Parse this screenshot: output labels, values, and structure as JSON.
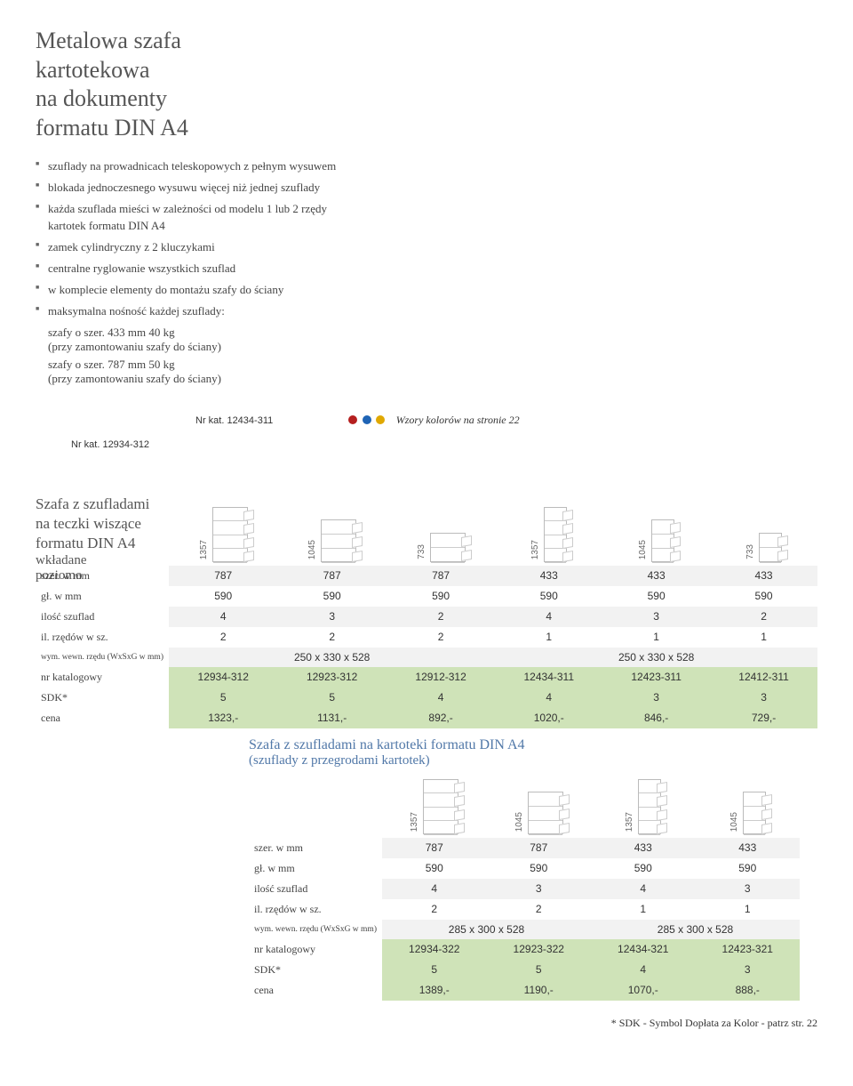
{
  "title_lines": [
    "Metalowa szafa",
    "kartotekowa",
    "na dokumenty",
    "formatu DIN A4"
  ],
  "bullets": [
    "szuflady na prowadnicach teleskopowych z pełnym wysuwem",
    "blokada jednoczesnego wysuwu więcej niż jednej szuflady",
    "każda szuflada mieści w zależności od modelu 1 lub 2 rzędy kartotek formatu DIN A4",
    "zamek cylindryczny z 2 kluczykami",
    "centralne ryglowanie wszystkich szuflad",
    "w komplecie elementy do montażu szafy do ściany",
    "maksymalna nośność każdej szuflady:"
  ],
  "load_lines": [
    "szafy o szer. 433 mm 40 kg",
    "(przy zamontowaniu szafy do ściany)",
    "szafy o szer. 787 mm 50 kg",
    "(przy zamontowaniu szafy do ściany)"
  ],
  "nr_kat_top": "Nr kat. 12434-311",
  "nr_kat_left": "Nr kat. 12934-312",
  "dot_colors": [
    "#b51f1f",
    "#1f64b5",
    "#e0a800"
  ],
  "color_note": "Wzory kolorów na stronie 22",
  "section1_title": [
    "Szafa z szufladami",
    "na teczki wiszące",
    "formatu DIN A4"
  ],
  "section1_sub": [
    "wkładane",
    "poziomo"
  ],
  "table1": {
    "heights": [
      "1357",
      "1045",
      "733",
      "1357",
      "1045",
      "733"
    ],
    "drawers": [
      4,
      3,
      2,
      4,
      3,
      2
    ],
    "wide": [
      true,
      true,
      true,
      false,
      false,
      false
    ],
    "rows": [
      {
        "label": "szer. w mm",
        "vals": [
          "787",
          "787",
          "787",
          "433",
          "433",
          "433"
        ],
        "zebra": true
      },
      {
        "label": "gł. w mm",
        "vals": [
          "590",
          "590",
          "590",
          "590",
          "590",
          "590"
        ],
        "zebra": false
      },
      {
        "label": "ilość szuflad",
        "vals": [
          "4",
          "3",
          "2",
          "4",
          "3",
          "2"
        ],
        "zebra": true
      },
      {
        "label": "il. rzędów w sz.",
        "vals": [
          "2",
          "2",
          "2",
          "1",
          "1",
          "1"
        ],
        "zebra": false
      }
    ],
    "wym_label": "wym. wewn. rzędu (WxSxG w mm)",
    "wym_vals": [
      "250 x 330 x 528",
      "250 x 330 x 528"
    ],
    "hl": [
      {
        "label": "nr katalogowy",
        "vals": [
          "12934-312",
          "12923-312",
          "12912-312",
          "12434-311",
          "12423-311",
          "12412-311"
        ]
      },
      {
        "label": "SDK*",
        "vals": [
          "5",
          "5",
          "4",
          "4",
          "3",
          "3"
        ]
      },
      {
        "label": "cena",
        "vals": [
          "1323,-",
          "1131,-",
          "892,-",
          "1020,-",
          "846,-",
          "729,-"
        ]
      }
    ]
  },
  "section2_title": "Szafa z szufladami na kartoteki formatu DIN A4",
  "section2_sub": "(szuflady z przegrodami kartotek)",
  "table2": {
    "heights": [
      "1357",
      "1045",
      "1357",
      "1045"
    ],
    "drawers": [
      4,
      3,
      4,
      3
    ],
    "wide": [
      true,
      true,
      false,
      false
    ],
    "rows": [
      {
        "label": "szer. w mm",
        "vals": [
          "787",
          "787",
          "433",
          "433"
        ],
        "zebra": true
      },
      {
        "label": "gł. w mm",
        "vals": [
          "590",
          "590",
          "590",
          "590"
        ],
        "zebra": false
      },
      {
        "label": "ilość szuflad",
        "vals": [
          "4",
          "3",
          "4",
          "3"
        ],
        "zebra": true
      },
      {
        "label": "il. rzędów w sz.",
        "vals": [
          "2",
          "2",
          "1",
          "1"
        ],
        "zebra": false
      }
    ],
    "wym_label": "wym. wewn. rzędu (WxSxG w mm)",
    "wym_vals": [
      "285 x 300 x 528",
      "285 x 300 x 528"
    ],
    "hl": [
      {
        "label": "nr katalogowy",
        "vals": [
          "12934-322",
          "12923-322",
          "12434-321",
          "12423-321"
        ]
      },
      {
        "label": "SDK*",
        "vals": [
          "5",
          "5",
          "4",
          "3"
        ]
      },
      {
        "label": "cena",
        "vals": [
          "1389,-",
          "1190,-",
          "1070,-",
          "888,-"
        ]
      }
    ]
  },
  "footer": "* SDK - Symbol Dopłata za Kolor - patrz str. 22"
}
